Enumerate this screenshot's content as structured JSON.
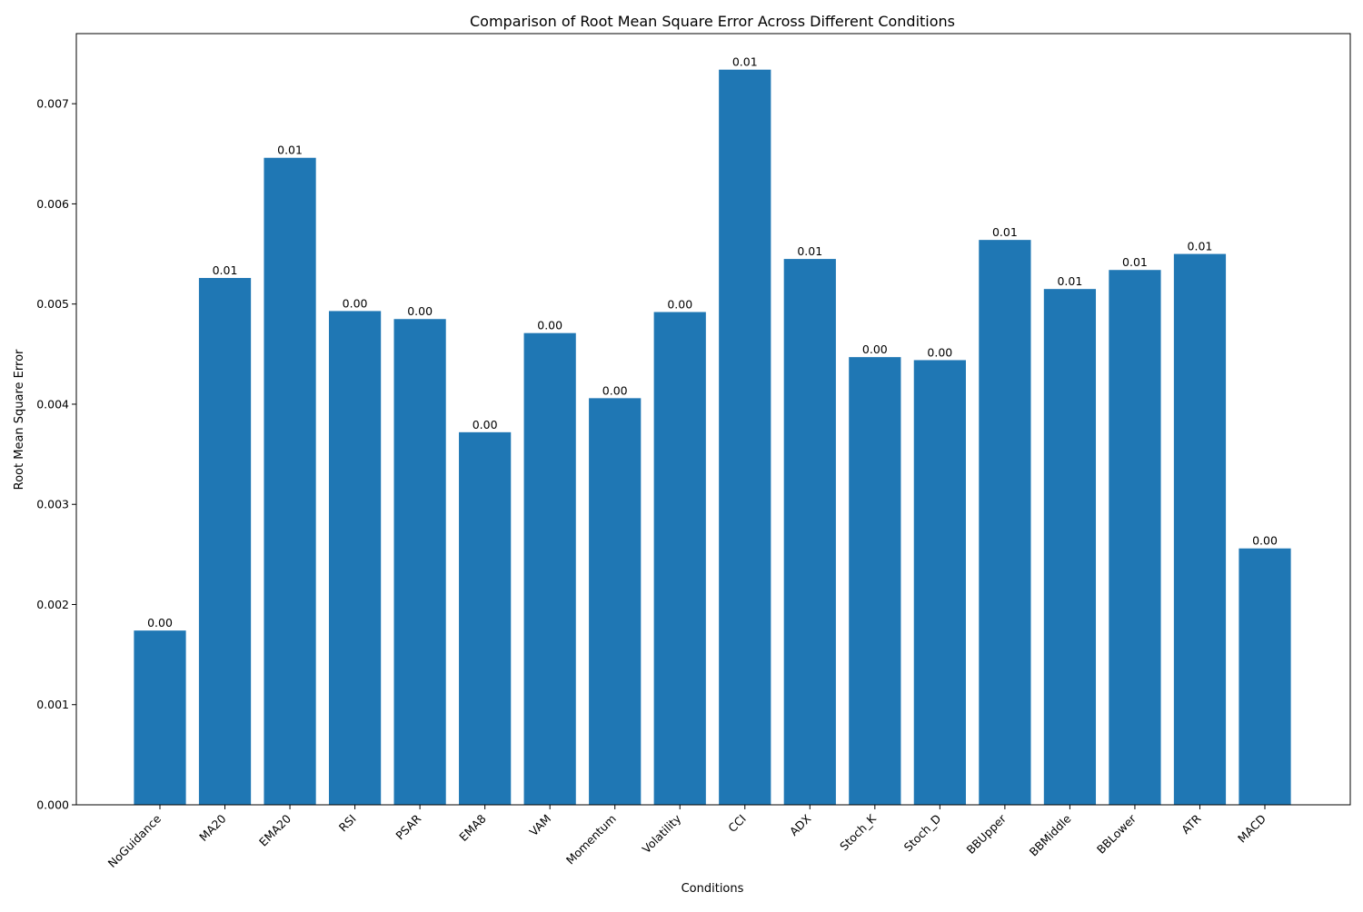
{
  "chart_data": {
    "type": "bar",
    "title": "Comparison of Root Mean Square Error Across Different Conditions",
    "xlabel": "Conditions",
    "ylabel": "Root Mean Square Error",
    "categories": [
      "NoGuidance",
      "MA20",
      "EMA20",
      "RSI",
      "PSAR",
      "EMA8",
      "VAM",
      "Momentum",
      "Volatility",
      "CCI",
      "ADX",
      "Stoch_K",
      "Stoch_D",
      "BBUpper",
      "BBMiddle",
      "BBLower",
      "ATR",
      "MACD"
    ],
    "values": [
      0.00174,
      0.00526,
      0.00646,
      0.00493,
      0.00485,
      0.00372,
      0.00471,
      0.00406,
      0.00492,
      0.00734,
      0.00545,
      0.00447,
      0.00444,
      0.00564,
      0.00515,
      0.00534,
      0.0055,
      0.00256
    ],
    "data_labels": [
      "0.00",
      "0.01",
      "0.01",
      "0.00",
      "0.00",
      "0.00",
      "0.00",
      "0.00",
      "0.00",
      "0.01",
      "0.01",
      "0.00",
      "0.00",
      "0.01",
      "0.01",
      "0.01",
      "0.01",
      "0.00"
    ],
    "yticks": [
      0.0,
      0.001,
      0.002,
      0.003,
      0.004,
      0.005,
      0.006,
      0.007
    ],
    "ytick_labels": [
      "0.000",
      "0.001",
      "0.002",
      "0.003",
      "0.004",
      "0.005",
      "0.006",
      "0.007"
    ],
    "ylim": [
      0,
      0.0077
    ],
    "grid": false,
    "legend": "none",
    "colors": {
      "bar": "#1f77b4",
      "axis": "#000000"
    }
  }
}
